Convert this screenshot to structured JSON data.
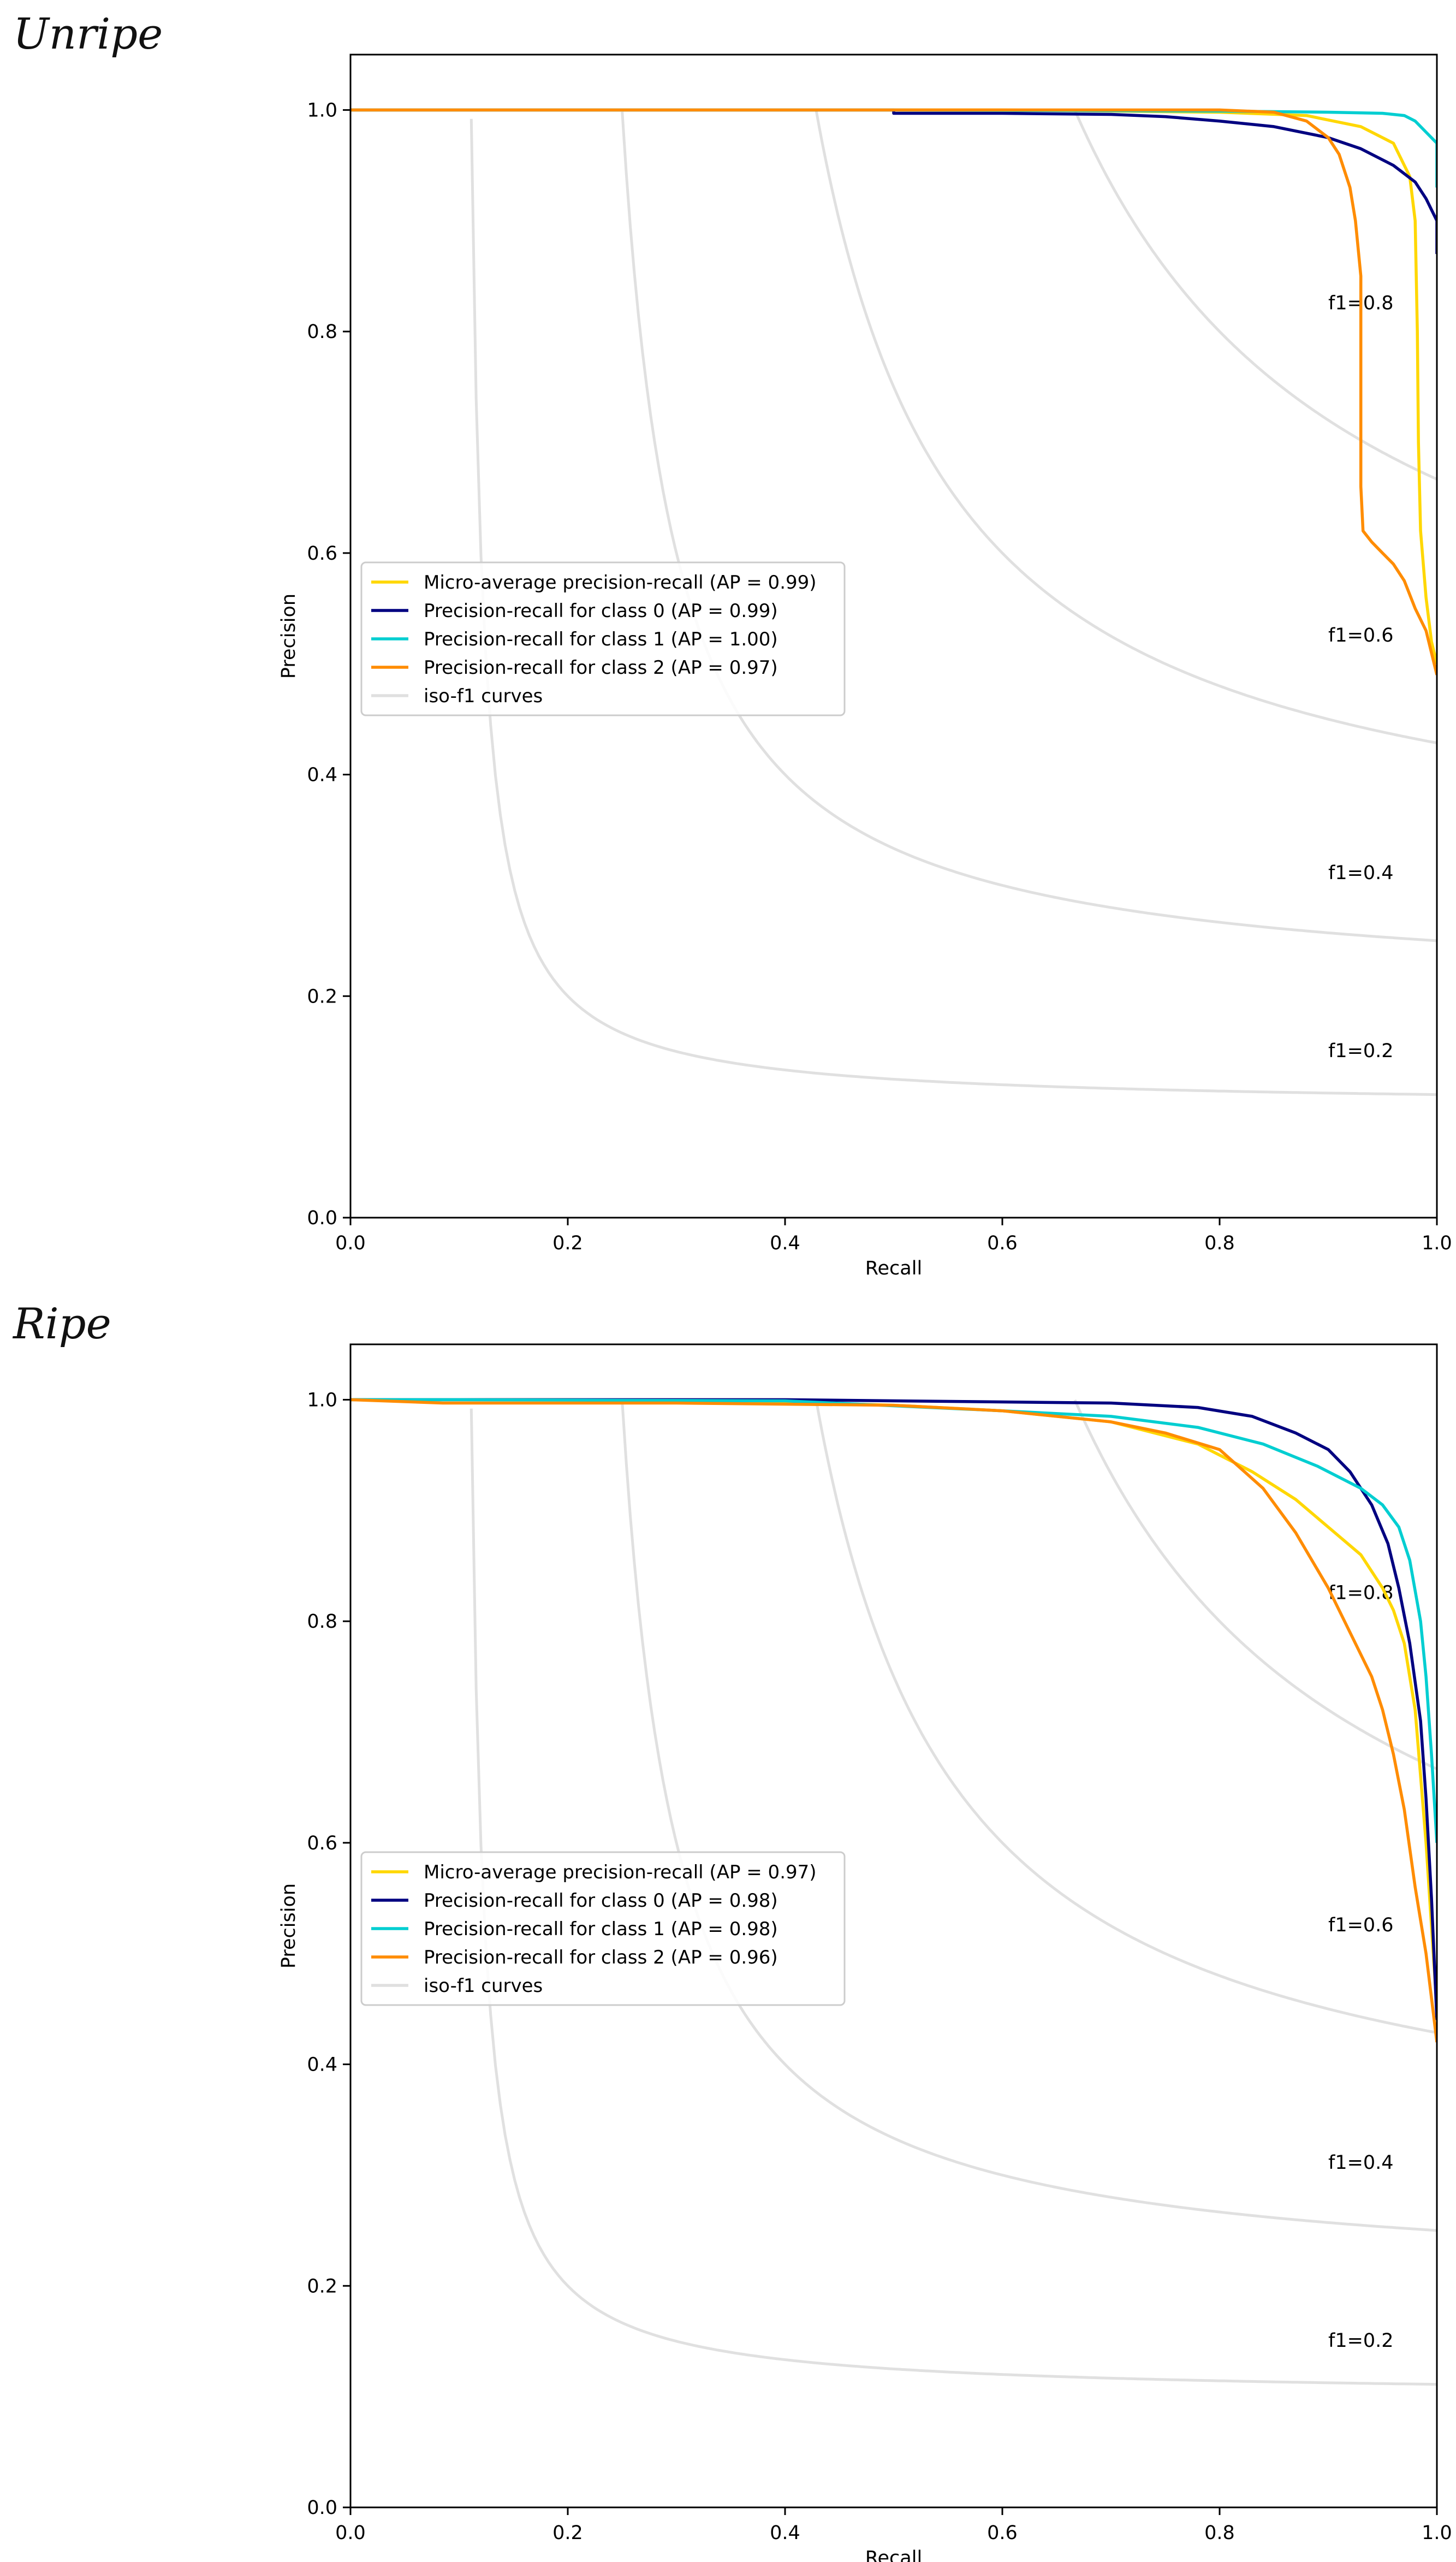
{
  "colors": {
    "micro": "#ffd700",
    "class0": "#000080",
    "class1": "#00ced1",
    "class2": "#ff8c00",
    "iso": "#e0e0e0"
  },
  "chart_data": [
    {
      "type": "line",
      "panel_title": "Unripe",
      "xlabel": "Recall",
      "ylabel": "Precision",
      "xlim": [
        0.0,
        1.0
      ],
      "ylim": [
        0.0,
        1.05
      ],
      "xticks": [
        "0.0",
        "0.2",
        "0.4",
        "0.6",
        "0.8",
        "1.0"
      ],
      "yticks": [
        "0.0",
        "0.2",
        "0.4",
        "0.6",
        "0.8",
        "1.0"
      ],
      "grid": false,
      "legend_position": "center-left",
      "iso_f1": [
        {
          "f": 0.2,
          "label": "f1=0.2"
        },
        {
          "f": 0.4,
          "label": "f1=0.4"
        },
        {
          "f": 0.6,
          "label": "f1=0.6"
        },
        {
          "f": 0.8,
          "label": "f1=0.8"
        }
      ],
      "series": [
        {
          "name": "Micro-average precision-recall (AP = 0.99)",
          "color_key": "micro",
          "x": [
            0.0,
            0.3,
            0.6,
            0.8,
            0.88,
            0.93,
            0.96,
            0.975,
            0.98,
            0.982,
            0.983,
            0.985,
            0.99,
            0.995,
            1.0
          ],
          "y": [
            1.0,
            1.0,
            1.0,
            0.998,
            0.995,
            0.985,
            0.97,
            0.94,
            0.9,
            0.8,
            0.7,
            0.62,
            0.56,
            0.52,
            0.5
          ]
        },
        {
          "name": "Precision-recall for class 0 (AP = 0.99)",
          "color_key": "class0",
          "x": [
            0.0,
            0.5,
            0.5,
            0.6,
            0.7,
            0.75,
            0.8,
            0.85,
            0.9,
            0.93,
            0.96,
            0.98,
            0.99,
            1.0,
            1.0
          ],
          "y": [
            1.0,
            1.0,
            0.997,
            0.997,
            0.996,
            0.994,
            0.99,
            0.985,
            0.975,
            0.965,
            0.95,
            0.935,
            0.92,
            0.9,
            0.87
          ]
        },
        {
          "name": "Precision-recall for class 1 (AP = 1.00)",
          "color_key": "class1",
          "x": [
            0.0,
            0.5,
            0.8,
            0.9,
            0.95,
            0.97,
            0.98,
            0.99,
            1.0,
            1.0
          ],
          "y": [
            1.0,
            1.0,
            0.999,
            0.998,
            0.997,
            0.995,
            0.99,
            0.98,
            0.97,
            0.93
          ]
        },
        {
          "name": "Precision-recall for class 2 (AP = 0.97)",
          "color_key": "class2",
          "x": [
            0.0,
            0.5,
            0.8,
            0.85,
            0.88,
            0.9,
            0.91,
            0.92,
            0.925,
            0.93,
            0.93,
            0.932,
            0.94,
            0.95,
            0.96,
            0.97,
            0.98,
            0.99,
            1.0
          ],
          "y": [
            1.0,
            1.0,
            1.0,
            0.998,
            0.99,
            0.975,
            0.96,
            0.93,
            0.9,
            0.85,
            0.66,
            0.62,
            0.61,
            0.6,
            0.59,
            0.575,
            0.55,
            0.53,
            0.49
          ]
        },
        {
          "name": "iso-f1 curves",
          "color_key": "iso",
          "legend_only": true,
          "x": [],
          "y": []
        }
      ]
    },
    {
      "type": "line",
      "panel_title": "Ripe",
      "xlabel": "Recall",
      "ylabel": "Precision",
      "xlim": [
        0.0,
        1.0
      ],
      "ylim": [
        0.0,
        1.05
      ],
      "xticks": [
        "0.0",
        "0.2",
        "0.4",
        "0.6",
        "0.8",
        "1.0"
      ],
      "yticks": [
        "0.0",
        "0.2",
        "0.4",
        "0.6",
        "0.8",
        "1.0"
      ],
      "grid": false,
      "legend_position": "center-left",
      "iso_f1": [
        {
          "f": 0.2,
          "label": "f1=0.2"
        },
        {
          "f": 0.4,
          "label": "f1=0.4"
        },
        {
          "f": 0.6,
          "label": "f1=0.6"
        },
        {
          "f": 0.8,
          "label": "f1=0.8"
        }
      ],
      "series": [
        {
          "name": "Micro-average precision-recall (AP = 0.97)",
          "color_key": "micro",
          "x": [
            0.0,
            0.2,
            0.4,
            0.5,
            0.6,
            0.7,
            0.78,
            0.83,
            0.87,
            0.9,
            0.93,
            0.95,
            0.96,
            0.97,
            0.98,
            0.99,
            1.0
          ],
          "y": [
            1.0,
            1.0,
            0.998,
            0.995,
            0.99,
            0.98,
            0.96,
            0.935,
            0.91,
            0.885,
            0.86,
            0.83,
            0.81,
            0.78,
            0.72,
            0.6,
            0.45
          ]
        },
        {
          "name": "Precision-recall for class 0 (AP = 0.98)",
          "color_key": "class0",
          "x": [
            0.0,
            0.4,
            0.6,
            0.7,
            0.78,
            0.83,
            0.87,
            0.9,
            0.92,
            0.94,
            0.955,
            0.965,
            0.975,
            0.985,
            0.99,
            0.995,
            1.0
          ],
          "y": [
            1.0,
            1.0,
            0.998,
            0.997,
            0.993,
            0.985,
            0.97,
            0.955,
            0.935,
            0.905,
            0.87,
            0.83,
            0.78,
            0.71,
            0.64,
            0.55,
            0.44
          ]
        },
        {
          "name": "Precision-recall for class 1 (AP = 0.98)",
          "color_key": "class1",
          "x": [
            0.0,
            0.1,
            0.4,
            0.6,
            0.7,
            0.78,
            0.84,
            0.89,
            0.93,
            0.95,
            0.965,
            0.975,
            0.985,
            0.99,
            0.995,
            1.0
          ],
          "y": [
            1.0,
            1.0,
            0.999,
            0.99,
            0.985,
            0.975,
            0.96,
            0.94,
            0.92,
            0.905,
            0.885,
            0.855,
            0.8,
            0.75,
            0.68,
            0.6
          ]
        },
        {
          "name": "Precision-recall for class 2 (AP = 0.96)",
          "color_key": "class2",
          "x": [
            0.0,
            0.085,
            0.3,
            0.5,
            0.6,
            0.7,
            0.75,
            0.8,
            0.84,
            0.87,
            0.9,
            0.92,
            0.94,
            0.95,
            0.96,
            0.97,
            0.98,
            0.99,
            1.0
          ],
          "y": [
            1.0,
            0.997,
            0.997,
            0.995,
            0.99,
            0.98,
            0.97,
            0.955,
            0.92,
            0.88,
            0.83,
            0.79,
            0.75,
            0.72,
            0.68,
            0.63,
            0.56,
            0.5,
            0.42
          ]
        },
        {
          "name": "iso-f1 curves",
          "color_key": "iso",
          "legend_only": true,
          "x": [],
          "y": []
        }
      ]
    }
  ]
}
